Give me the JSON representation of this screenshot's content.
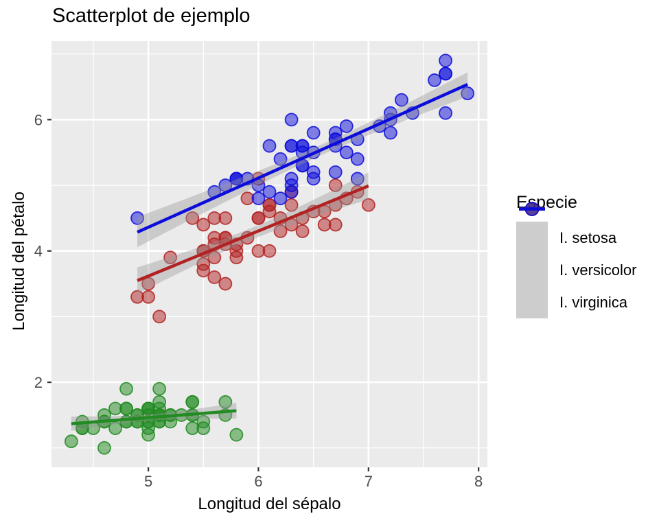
{
  "title": "Scatterplot de ejemplo",
  "x_axis": {
    "label": "Longitud del sépalo",
    "ticks": [
      5,
      6,
      7,
      8
    ],
    "minor_ticks": [
      4.5,
      5.5,
      6.5,
      7.5
    ],
    "range": [
      4.12,
      8.08
    ]
  },
  "y_axis": {
    "label": "Longitud del pétalo",
    "ticks": [
      2,
      4,
      6
    ],
    "minor_ticks": [
      1,
      3,
      5,
      7
    ],
    "range": [
      0.705,
      7.195
    ]
  },
  "legend": {
    "title": "Especie",
    "entries": [
      {
        "label": "I. setosa",
        "color": "#228B22"
      },
      {
        "label": "I. versicolor",
        "color": "#B22222"
      },
      {
        "label": "I. virginica",
        "color": "#0D0DDB"
      }
    ]
  },
  "style": {
    "panel_bg": "#EBEBEB",
    "grid_color": "#FFFFFF",
    "tick_text_color": "#4D4D4D",
    "tick_mark_color": "#333333",
    "ci_band_color": "#999999",
    "legend_key_bg": "#CDCDCD"
  },
  "chart_data": {
    "type": "scatter",
    "title": "Scatterplot de ejemplo",
    "xlabel": "Longitud del sépalo",
    "ylabel": "Longitud del pétalo",
    "xlim": [
      4.12,
      8.08
    ],
    "ylim": [
      0.705,
      7.195
    ],
    "grid": true,
    "legend_position": "right",
    "smooth": {
      "method": "lm",
      "ci_level": 0.95
    },
    "series": [
      {
        "name": "I. setosa",
        "color": "#228B22",
        "x": [
          5.1,
          4.9,
          4.7,
          4.6,
          5.0,
          5.4,
          4.6,
          5.0,
          4.4,
          4.9,
          5.4,
          4.8,
          4.8,
          4.3,
          5.8,
          5.7,
          5.4,
          5.1,
          5.7,
          5.1,
          5.4,
          5.1,
          4.6,
          5.1,
          4.8,
          5.0,
          5.0,
          5.2,
          5.2,
          4.7,
          4.8,
          5.4,
          5.2,
          5.5,
          4.9,
          5.0,
          5.5,
          4.9,
          4.4,
          5.1,
          5.0,
          4.5,
          4.4,
          5.0,
          5.1,
          4.8,
          5.1,
          4.6,
          5.3,
          5.0
        ],
        "y": [
          1.4,
          1.4,
          1.3,
          1.5,
          1.4,
          1.7,
          1.4,
          1.5,
          1.4,
          1.5,
          1.5,
          1.6,
          1.4,
          1.1,
          1.2,
          1.5,
          1.3,
          1.4,
          1.7,
          1.5,
          1.7,
          1.5,
          1.0,
          1.7,
          1.9,
          1.6,
          1.6,
          1.5,
          1.4,
          1.6,
          1.6,
          1.5,
          1.5,
          1.4,
          1.5,
          1.2,
          1.3,
          1.4,
          1.3,
          1.5,
          1.3,
          1.3,
          1.3,
          1.6,
          1.9,
          1.4,
          1.6,
          1.4,
          1.5,
          1.4
        ]
      },
      {
        "name": "I. versicolor",
        "color": "#B22222",
        "x": [
          7.0,
          6.4,
          6.9,
          5.5,
          6.5,
          5.7,
          6.3,
          4.9,
          6.6,
          5.2,
          5.0,
          5.9,
          6.0,
          6.1,
          5.6,
          6.7,
          5.6,
          5.8,
          6.2,
          5.6,
          5.9,
          6.1,
          6.3,
          6.1,
          6.4,
          6.6,
          6.8,
          6.7,
          6.0,
          5.7,
          5.5,
          5.5,
          5.8,
          6.0,
          5.4,
          6.0,
          6.7,
          6.3,
          5.6,
          5.5,
          5.5,
          6.1,
          5.8,
          5.0,
          5.6,
          5.7,
          5.7,
          6.2,
          5.1,
          5.7
        ],
        "y": [
          4.7,
          4.5,
          4.9,
          4.0,
          4.6,
          4.5,
          4.7,
          3.3,
          4.6,
          3.9,
          3.5,
          4.2,
          4.0,
          4.7,
          3.6,
          4.4,
          4.5,
          4.1,
          4.5,
          3.9,
          4.8,
          4.0,
          4.9,
          4.7,
          4.3,
          4.4,
          4.8,
          5.0,
          4.5,
          3.5,
          3.8,
          3.7,
          3.9,
          5.1,
          4.5,
          4.5,
          4.7,
          4.4,
          4.1,
          4.0,
          4.4,
          4.6,
          4.0,
          3.3,
          4.2,
          4.2,
          4.2,
          4.3,
          3.0,
          4.1
        ]
      },
      {
        "name": "I. virginica",
        "color": "#0D0DDB",
        "x": [
          6.3,
          5.8,
          7.1,
          6.3,
          6.5,
          7.6,
          4.9,
          7.3,
          6.7,
          7.2,
          6.5,
          6.4,
          6.8,
          5.7,
          5.8,
          6.4,
          6.5,
          7.7,
          7.7,
          6.0,
          6.9,
          5.6,
          7.7,
          6.3,
          6.7,
          7.2,
          6.2,
          6.1,
          6.4,
          7.2,
          7.4,
          7.9,
          6.4,
          6.3,
          6.1,
          7.7,
          6.3,
          6.4,
          6.0,
          6.9,
          6.7,
          6.9,
          5.8,
          6.8,
          6.7,
          6.7,
          6.3,
          6.5,
          6.2,
          5.9
        ],
        "y": [
          6.0,
          5.1,
          5.9,
          5.6,
          5.8,
          6.6,
          4.5,
          6.3,
          5.8,
          6.1,
          5.1,
          5.3,
          5.5,
          5.0,
          5.1,
          5.3,
          5.5,
          6.7,
          6.9,
          5.0,
          5.7,
          4.9,
          6.7,
          4.9,
          5.7,
          6.0,
          4.8,
          4.9,
          5.6,
          5.8,
          6.1,
          6.4,
          5.6,
          5.1,
          5.6,
          6.1,
          5.6,
          5.5,
          4.8,
          5.4,
          5.6,
          5.1,
          5.1,
          5.9,
          5.7,
          5.2,
          5.0,
          5.2,
          5.4,
          5.1
        ]
      }
    ]
  }
}
